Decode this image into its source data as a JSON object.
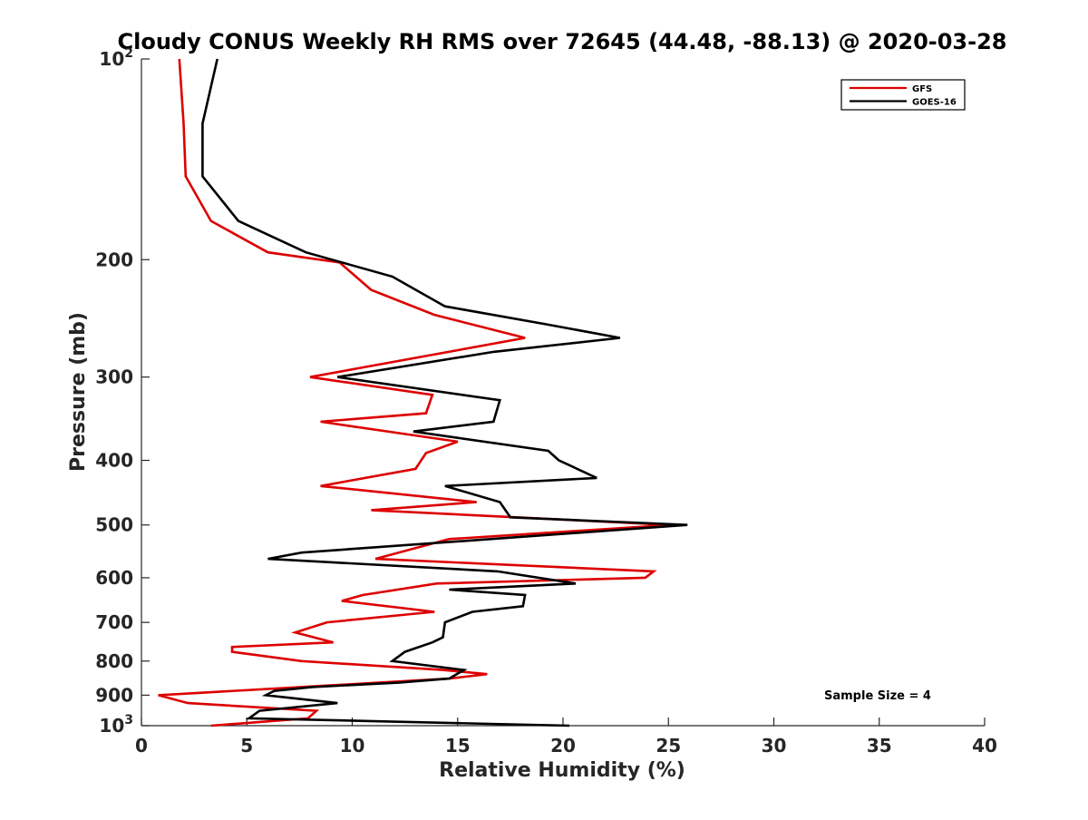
{
  "chart_data": {
    "type": "line",
    "title": "Cloudy CONUS Weekly RH RMS over 72645 (44.48, -88.13) @ 2020-03-28",
    "xlabel": "Relative Humidity (%)",
    "ylabel": "Pressure (mb)",
    "xlim": [
      0,
      40
    ],
    "ylim": [
      100,
      1000
    ],
    "yscale": "log",
    "y_reversed": true,
    "grid": false,
    "legend_position": "top-right",
    "xticks": [
      0,
      5,
      10,
      15,
      20,
      25,
      30,
      35,
      40
    ],
    "xtick_labels": [
      "0",
      "5",
      "10",
      "15",
      "20",
      "25",
      "30",
      "35",
      "40"
    ],
    "yticks": [
      100,
      200,
      300,
      400,
      500,
      600,
      700,
      800,
      900,
      1000
    ],
    "ytick_labels": [
      {
        "base": "10",
        "sup": "2"
      },
      {
        "base": "200"
      },
      {
        "base": "300"
      },
      {
        "base": "400"
      },
      {
        "base": "500"
      },
      {
        "base": "600"
      },
      {
        "base": "700"
      },
      {
        "base": "800"
      },
      {
        "base": "900"
      },
      {
        "base": "10",
        "sup": "3"
      }
    ],
    "annotation": "Sample Size = 4",
    "series": [
      {
        "name": "GFS",
        "color": "#dd0000",
        "points": [
          [
            1.8,
            100
          ],
          [
            2.0,
            125
          ],
          [
            2.1,
            150
          ],
          [
            3.3,
            175
          ],
          [
            6.0,
            195
          ],
          [
            9.4,
            202
          ],
          [
            10.9,
            222
          ],
          [
            13.9,
            242
          ],
          [
            18.2,
            262
          ],
          [
            8.0,
            300
          ],
          [
            13.8,
            319
          ],
          [
            13.5,
            340
          ],
          [
            8.5,
            350
          ],
          [
            15.0,
            375
          ],
          [
            13.5,
            390
          ],
          [
            13.0,
            412
          ],
          [
            8.5,
            437
          ],
          [
            15.9,
            462
          ],
          [
            10.9,
            475
          ],
          [
            25.1,
            500
          ],
          [
            14.6,
            525
          ],
          [
            11.1,
            562
          ],
          [
            24.3,
            587
          ],
          [
            23.9,
            600
          ],
          [
            14.0,
            612
          ],
          [
            10.5,
            637
          ],
          [
            9.5,
            650
          ],
          [
            13.9,
            675
          ],
          [
            8.8,
            700
          ],
          [
            7.3,
            725
          ],
          [
            9.1,
            750
          ],
          [
            4.3,
            762
          ],
          [
            4.3,
            775
          ],
          [
            7.6,
            800
          ],
          [
            14.3,
            825
          ],
          [
            16.4,
            837
          ],
          [
            14.6,
            850
          ],
          [
            0.8,
            900
          ],
          [
            2.2,
            925
          ],
          [
            8.3,
            950
          ],
          [
            7.9,
            975
          ],
          [
            3.3,
            1000
          ]
        ]
      },
      {
        "name": "GOES-16",
        "color": "#000000",
        "points": [
          [
            3.6,
            100
          ],
          [
            2.9,
            125
          ],
          [
            2.9,
            150
          ],
          [
            4.6,
            175
          ],
          [
            7.8,
            195
          ],
          [
            11.9,
            212
          ],
          [
            14.4,
            235
          ],
          [
            19.2,
            250
          ],
          [
            22.7,
            262
          ],
          [
            16.7,
            275
          ],
          [
            9.3,
            300
          ],
          [
            17.0,
            325
          ],
          [
            16.7,
            350
          ],
          [
            12.9,
            362
          ],
          [
            19.3,
            387
          ],
          [
            19.8,
            400
          ],
          [
            21.6,
            425
          ],
          [
            14.4,
            437
          ],
          [
            17.0,
            462
          ],
          [
            17.5,
            487
          ],
          [
            25.9,
            500
          ],
          [
            7.6,
            550
          ],
          [
            6.0,
            562
          ],
          [
            16.9,
            587
          ],
          [
            20.6,
            612
          ],
          [
            14.6,
            625
          ],
          [
            18.2,
            637
          ],
          [
            18.1,
            662
          ],
          [
            15.7,
            675
          ],
          [
            14.4,
            700
          ],
          [
            14.3,
            737
          ],
          [
            13.8,
            750
          ],
          [
            12.5,
            775
          ],
          [
            11.9,
            800
          ],
          [
            15.3,
            825
          ],
          [
            14.6,
            850
          ],
          [
            12.2,
            862
          ],
          [
            8.1,
            875
          ],
          [
            6.3,
            887
          ],
          [
            5.9,
            900
          ],
          [
            9.3,
            925
          ],
          [
            5.6,
            950
          ],
          [
            5.1,
            975
          ],
          [
            20.3,
            1000
          ]
        ]
      }
    ]
  }
}
